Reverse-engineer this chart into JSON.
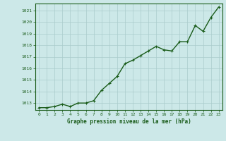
{
  "x": [
    0,
    1,
    2,
    3,
    4,
    5,
    6,
    7,
    8,
    9,
    10,
    11,
    12,
    13,
    14,
    15,
    16,
    17,
    18,
    19,
    20,
    21,
    22,
    23
  ],
  "y": [
    1012.6,
    1012.6,
    1012.7,
    1012.9,
    1012.7,
    1013.0,
    1013.0,
    1013.2,
    1014.1,
    1014.7,
    1015.3,
    1016.4,
    1016.7,
    1017.1,
    1017.5,
    1017.9,
    1017.6,
    1017.5,
    1018.3,
    1018.3,
    1019.7,
    1019.2,
    1020.4,
    1021.3
  ],
  "line_color": "#1a5c1a",
  "marker": "+",
  "bg_color": "#cce8e8",
  "grid_color": "#aacccc",
  "axis_label_color": "#1a5c1a",
  "tick_color": "#1a5c1a",
  "xlabel": "Graphe pression niveau de la mer (hPa)",
  "ylim": [
    1012.4,
    1021.6
  ],
  "yticks": [
    1013,
    1014,
    1015,
    1016,
    1017,
    1018,
    1019,
    1020,
    1021
  ],
  "xlim": [
    -0.5,
    23.5
  ],
  "xticks": [
    0,
    1,
    2,
    3,
    4,
    5,
    6,
    7,
    8,
    9,
    10,
    11,
    12,
    13,
    14,
    15,
    16,
    17,
    18,
    19,
    20,
    21,
    22,
    23
  ],
  "line_width": 1.0,
  "marker_size": 3.5
}
